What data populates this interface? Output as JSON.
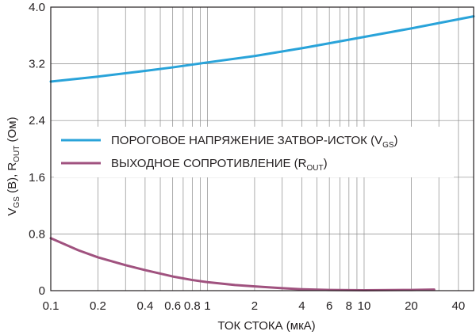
{
  "chart_data": {
    "type": "line",
    "x_scale": "log",
    "xlim": [
      0.1,
      50
    ],
    "ylim": [
      0,
      4.0
    ],
    "grid": true,
    "legend_position": "middle-left",
    "xlabel": "ТОК СТОКА (мкА)",
    "ylabel": {
      "p1": "V",
      "sub1": "GS",
      "p2": " (В), R",
      "sub2": "OUT",
      "p3": " (Ом)"
    },
    "x_ticks": [
      {
        "value": 0.1,
        "label": "0.1"
      },
      {
        "value": 0.2,
        "label": "0.2"
      },
      {
        "value": 0.4,
        "label": "0.4"
      },
      {
        "value": 0.6,
        "label": "0.6"
      },
      {
        "value": 0.8,
        "label": "0.8"
      },
      {
        "value": 1,
        "label": "1"
      },
      {
        "value": 2,
        "label": "2"
      },
      {
        "value": 4,
        "label": "4"
      },
      {
        "value": 6,
        "label": "6"
      },
      {
        "value": 8,
        "label": "8"
      },
      {
        "value": 10,
        "label": "10"
      },
      {
        "value": 20,
        "label": "20"
      },
      {
        "value": 40,
        "label": "40"
      }
    ],
    "y_ticks": [
      {
        "value": 0,
        "label": "0"
      },
      {
        "value": 0.8,
        "label": "0.8"
      },
      {
        "value": 1.6,
        "label": "1.6"
      },
      {
        "value": 2.4,
        "label": "2.4"
      },
      {
        "value": 3.2,
        "label": "3.2"
      },
      {
        "value": 4.0,
        "label": "4.0"
      }
    ],
    "series": [
      {
        "name": {
          "p1": "ПОРОГОВОЕ НАПРЯЖЕНИЕ ЗАТВОР-ИСТОК (V",
          "sub": "GS",
          "p2": ")"
        },
        "color": "#29a3d9",
        "x": [
          0.1,
          0.2,
          0.4,
          0.6,
          1,
          2,
          4,
          6,
          10,
          20,
          50
        ],
        "y": [
          2.95,
          3.02,
          3.1,
          3.15,
          3.22,
          3.31,
          3.42,
          3.49,
          3.58,
          3.7,
          3.87
        ]
      },
      {
        "name": {
          "p1": "ВЫХОДНОЕ СОПРОТИВЛЕНИЕ (R",
          "sub": "OUT",
          "p2": ")"
        },
        "color": "#a0527f",
        "x": [
          0.1,
          0.15,
          0.2,
          0.3,
          0.4,
          0.6,
          0.8,
          1,
          1.5,
          2,
          3,
          4,
          6,
          10,
          20,
          28
        ],
        "y": [
          0.74,
          0.57,
          0.47,
          0.36,
          0.29,
          0.2,
          0.15,
          0.12,
          0.08,
          0.06,
          0.035,
          0.02,
          0.01,
          0.005,
          0.01,
          0.015
        ]
      }
    ]
  }
}
